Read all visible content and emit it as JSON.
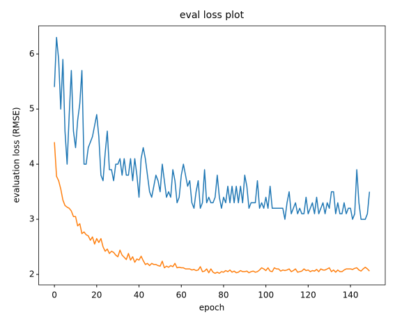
{
  "chart_data": {
    "type": "line",
    "title": "eval loss plot",
    "x_label": "epoch",
    "y_label": "evaluation loss (RMSE)",
    "x": [
      0,
      1,
      2,
      3,
      4,
      5,
      6,
      7,
      8,
      9,
      10,
      11,
      12,
      13,
      14,
      15,
      16,
      17,
      18,
      19,
      20,
      21,
      22,
      23,
      24,
      25,
      26,
      27,
      28,
      29,
      30,
      31,
      32,
      33,
      34,
      35,
      36,
      37,
      38,
      39,
      40,
      41,
      42,
      43,
      44,
      45,
      46,
      47,
      48,
      49,
      50,
      51,
      52,
      53,
      54,
      55,
      56,
      57,
      58,
      59,
      60,
      61,
      62,
      63,
      64,
      65,
      66,
      67,
      68,
      69,
      70,
      71,
      72,
      73,
      74,
      75,
      76,
      77,
      78,
      79,
      80,
      81,
      82,
      83,
      84,
      85,
      86,
      87,
      88,
      89,
      90,
      91,
      92,
      93,
      94,
      95,
      96,
      97,
      98,
      99,
      100,
      101,
      102,
      103,
      104,
      105,
      106,
      107,
      108,
      109,
      110,
      111,
      112,
      113,
      114,
      115,
      116,
      117,
      118,
      119,
      120,
      121,
      122,
      123,
      124,
      125,
      126,
      127,
      128,
      129,
      130,
      131,
      132,
      133,
      134,
      135,
      136,
      137,
      138,
      139,
      140,
      141,
      142,
      143,
      144,
      145,
      146,
      147,
      148,
      149
    ],
    "series": [
      {
        "color": "#1f77b4",
        "values": [
          5.4,
          6.3,
          5.9,
          5.0,
          5.9,
          4.6,
          4.0,
          4.9,
          5.7,
          4.6,
          4.3,
          4.8,
          5.1,
          5.7,
          4.0,
          4.0,
          4.3,
          4.4,
          4.5,
          4.7,
          4.9,
          4.5,
          3.8,
          3.7,
          4.2,
          4.6,
          3.9,
          3.9,
          3.7,
          4.0,
          4.0,
          4.1,
          3.8,
          4.1,
          3.8,
          3.8,
          4.1,
          3.7,
          4.1,
          3.8,
          3.4,
          4.1,
          4.3,
          4.1,
          3.8,
          3.5,
          3.4,
          3.6,
          3.8,
          3.7,
          3.5,
          4.0,
          3.7,
          3.4,
          3.5,
          3.4,
          3.9,
          3.7,
          3.3,
          3.4,
          3.8,
          4.0,
          3.8,
          3.6,
          3.7,
          3.3,
          3.2,
          3.5,
          3.7,
          3.2,
          3.3,
          3.9,
          3.3,
          3.4,
          3.3,
          3.3,
          3.4,
          3.8,
          3.4,
          3.2,
          3.4,
          3.3,
          3.6,
          3.3,
          3.6,
          3.3,
          3.6,
          3.3,
          3.6,
          3.3,
          3.8,
          3.6,
          3.2,
          3.3,
          3.3,
          3.3,
          3.7,
          3.2,
          3.3,
          3.2,
          3.4,
          3.2,
          3.6,
          3.2,
          3.2,
          3.2,
          3.2,
          3.2,
          3.2,
          3.0,
          3.3,
          3.5,
          3.1,
          3.2,
          3.3,
          3.1,
          3.2,
          3.1,
          3.1,
          3.4,
          3.1,
          3.2,
          3.3,
          3.1,
          3.4,
          3.1,
          3.2,
          3.3,
          3.1,
          3.3,
          3.2,
          3.5,
          3.5,
          3.1,
          3.3,
          3.1,
          3.1,
          3.3,
          3.1,
          3.2,
          3.2,
          3.0,
          3.1,
          3.9,
          3.3,
          3.0,
          3.0,
          3.0,
          3.1,
          3.5
        ]
      },
      {
        "color": "#ff7f0e",
        "values": [
          4.4,
          3.78,
          3.7,
          3.55,
          3.35,
          3.25,
          3.22,
          3.2,
          3.15,
          3.05,
          3.05,
          2.88,
          2.92,
          2.74,
          2.77,
          2.72,
          2.7,
          2.62,
          2.68,
          2.55,
          2.65,
          2.58,
          2.65,
          2.5,
          2.42,
          2.46,
          2.38,
          2.42,
          2.4,
          2.35,
          2.32,
          2.44,
          2.35,
          2.31,
          2.27,
          2.38,
          2.26,
          2.32,
          2.22,
          2.28,
          2.26,
          2.33,
          2.25,
          2.18,
          2.2,
          2.16,
          2.2,
          2.18,
          2.18,
          2.16,
          2.15,
          2.24,
          2.12,
          2.15,
          2.13,
          2.16,
          2.14,
          2.2,
          2.12,
          2.13,
          2.12,
          2.12,
          2.1,
          2.1,
          2.1,
          2.08,
          2.09,
          2.07,
          2.08,
          2.14,
          2.05,
          2.06,
          2.1,
          2.03,
          2.1,
          2.04,
          2.02,
          2.04,
          2.02,
          2.05,
          2.04,
          2.07,
          2.05,
          2.08,
          2.04,
          2.06,
          2.03,
          2.04,
          2.07,
          2.05,
          2.05,
          2.06,
          2.03,
          2.05,
          2.06,
          2.04,
          2.05,
          2.08,
          2.12,
          2.1,
          2.07,
          2.12,
          2.06,
          2.05,
          2.12,
          2.1,
          2.1,
          2.06,
          2.08,
          2.07,
          2.08,
          2.1,
          2.05,
          2.07,
          2.1,
          2.04,
          2.05,
          2.06,
          2.1,
          2.07,
          2.08,
          2.05,
          2.07,
          2.06,
          2.09,
          2.05,
          2.1,
          2.08,
          2.08,
          2.1,
          2.12,
          2.05,
          2.08,
          2.04,
          2.08,
          2.05,
          2.05,
          2.08,
          2.1,
          2.1,
          2.1,
          2.09,
          2.11,
          2.12,
          2.08,
          2.06,
          2.1,
          2.13,
          2.1,
          2.06
        ]
      }
    ],
    "xlim": [
      -7.45,
      156.45
    ],
    "xticks": [
      0,
      20,
      40,
      60,
      80,
      100,
      120,
      140
    ],
    "ylim": [
      1.81,
      6.51
    ],
    "yticks": [
      2,
      3,
      4,
      5,
      6
    ],
    "grid": false
  }
}
